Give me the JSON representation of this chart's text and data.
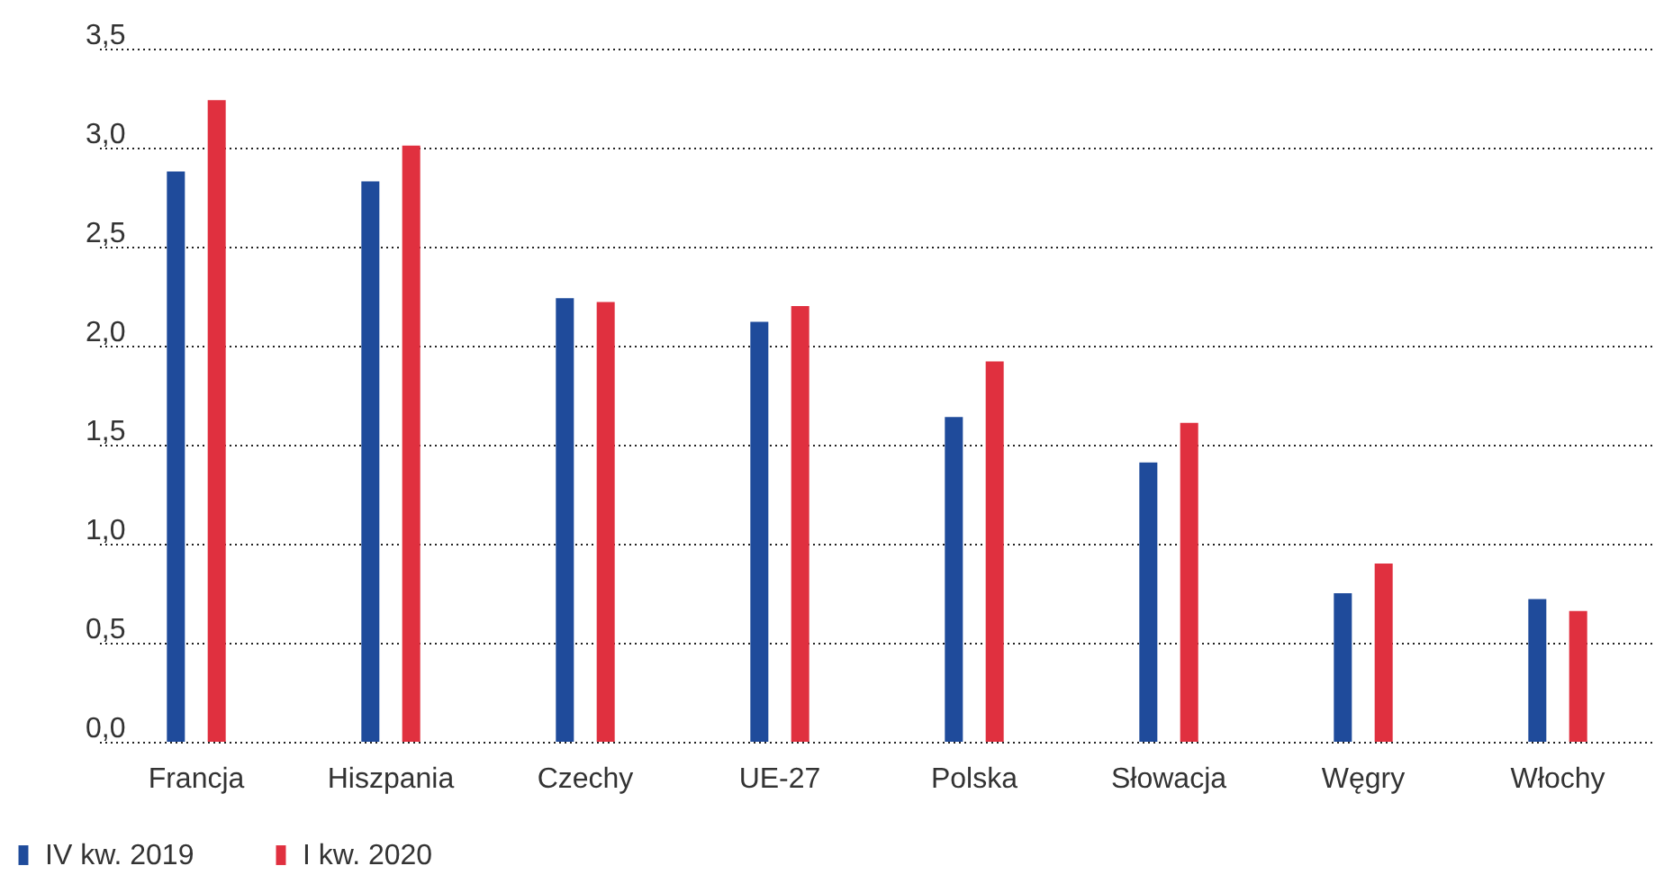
{
  "chart_data": {
    "type": "bar",
    "categories": [
      "Francja",
      "Hiszpania",
      "Czechy",
      "UE-27",
      "Polska",
      "Słowacja",
      "Węgry",
      "Włochy"
    ],
    "series": [
      {
        "name": "IV kw. 2019",
        "color": "#1f4b9b",
        "values": [
          2.88,
          2.83,
          2.24,
          2.12,
          1.64,
          1.41,
          0.75,
          0.72
        ]
      },
      {
        "name": "I kw. 2020",
        "color": "#e0303f",
        "values": [
          3.24,
          3.01,
          2.22,
          2.2,
          1.92,
          1.61,
          0.9,
          0.66
        ]
      }
    ],
    "ylim": [
      0,
      3.5
    ],
    "yticks": [
      {
        "value": 0,
        "label": "0,0"
      },
      {
        "value": 0.5,
        "label": "0,5"
      },
      {
        "value": 1,
        "label": "1,0"
      },
      {
        "value": 1.5,
        "label": "1,5"
      },
      {
        "value": 2,
        "label": "2,0"
      },
      {
        "value": 2.5,
        "label": "2,5"
      },
      {
        "value": 3,
        "label": "3,0"
      },
      {
        "value": 3.5,
        "label": "3,5"
      }
    ],
    "grid": "y",
    "legend": "bottom left"
  }
}
